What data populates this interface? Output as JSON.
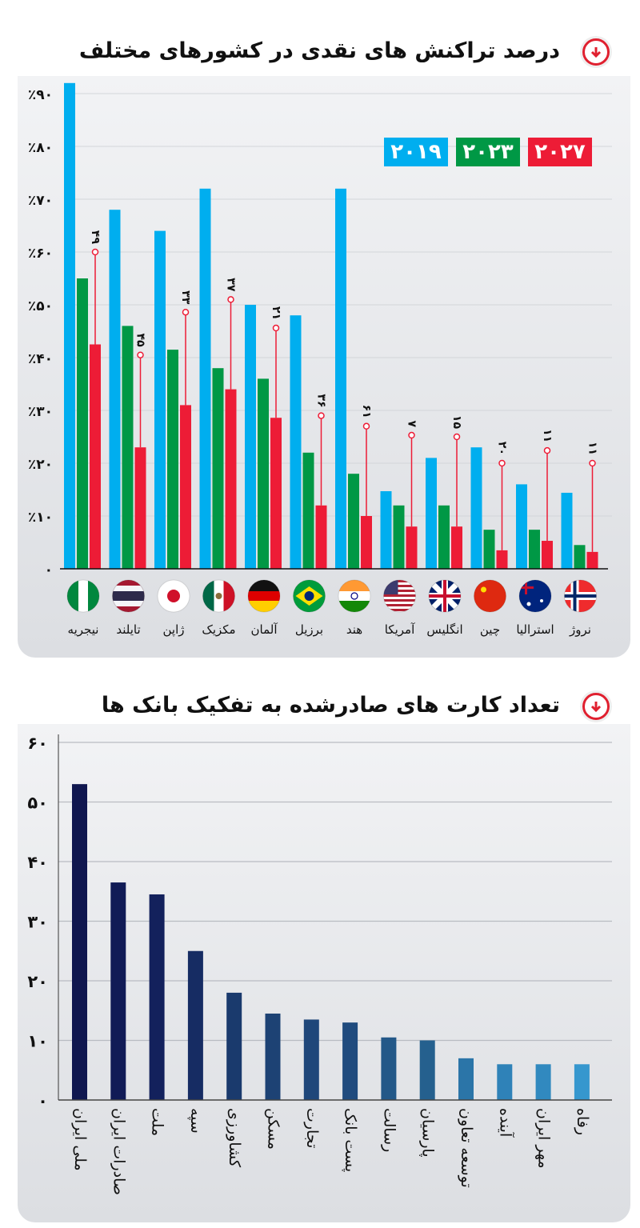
{
  "chart_data": [
    {
      "type": "bar",
      "title": "درصد تراکنش های نقدی در کشورهای مختلف",
      "categories": [
        "نیجریه",
        "تایلند",
        "ژاپن",
        "مکزیک",
        "آلمان",
        "برزیل",
        "هند",
        "آمریکا",
        "انگلیس",
        "چین",
        "استرالیا",
        "نروژ"
      ],
      "flags": [
        "nigeria-flag-icon",
        "thailand-flag-icon",
        "japan-flag-icon",
        "mexico-flag-icon",
        "germany-flag-icon",
        "brazil-flag-icon",
        "india-flag-icon",
        "usa-flag-icon",
        "uk-flag-icon",
        "china-flag-icon",
        "australia-flag-icon",
        "norway-flag-icon"
      ],
      "series": [
        {
          "name": "۲۰۱۹",
          "color": "#00aeef",
          "values": [
            92,
            68,
            64,
            72,
            50,
            48,
            72,
            14.7,
            21,
            23,
            16,
            14.4
          ]
        },
        {
          "name": "۲۰۲۳",
          "color": "#009845",
          "values": [
            55,
            46,
            41.5,
            38,
            36,
            22,
            18,
            12,
            12,
            7.4,
            7.4,
            4.5
          ]
        },
        {
          "name": "۲۰۲۷",
          "color": "#ed1c36",
          "values": [
            42.5,
            23,
            31,
            34,
            28.6,
            12,
            10,
            8,
            8,
            3.5,
            5.3,
            3.2
          ]
        }
      ],
      "annotations": [
        "۴۹",
        "۴۵",
        "۳۳",
        "۳۷",
        "۲۱",
        "۳۶",
        "۶۱",
        "۷",
        "۱۵",
        "۲۰",
        "۱۱",
        "۱۱"
      ],
      "annotation_marker_levels": [
        60,
        40.5,
        48.6,
        51,
        45.6,
        29,
        27,
        25.3,
        25,
        20,
        22.4,
        20
      ],
      "yticks": [
        "۰",
        "٪۱۰",
        "٪۲۰",
        "٪۳۰",
        "٪۴۰",
        "٪۵۰",
        "٪۶۰",
        "٪۷۰",
        "٪۸۰",
        "٪۹۰"
      ],
      "ylim": [
        0,
        92
      ],
      "grid": true,
      "legend_placement": "top-right"
    },
    {
      "type": "bar",
      "title": "تعداد کارت های صادرشده به تفکیک بانک ها",
      "categories": [
        "ملی ایران",
        "صادرات ایران",
        "ملت",
        "سپه",
        "کشاورزی",
        "مسکن",
        "تجارت",
        "پست بانک",
        "رسالت",
        "پارسیان",
        "توسعه تعاون",
        "آینده",
        "مهر ایران",
        "رفاه"
      ],
      "values": [
        53,
        36.5,
        34.5,
        25,
        18,
        14.5,
        13.5,
        13,
        10.5,
        10,
        7,
        6,
        6,
        6
      ],
      "colors": [
        "#10174f",
        "#111b56",
        "#13215c",
        "#162c63",
        "#1a3a6d",
        "#1d4274",
        "#1f477a",
        "#204b7e",
        "#235888",
        "#25608e",
        "#2b75a8",
        "#2f82b8",
        "#3189bf",
        "#3697ce"
      ],
      "yticks": [
        "۰",
        "۱۰",
        "۲۰",
        "۳۰",
        "۴۰",
        "۵۰",
        "۶۰"
      ],
      "ylim": [
        0,
        60
      ],
      "grid": true
    }
  ],
  "accent": "#e0202f"
}
